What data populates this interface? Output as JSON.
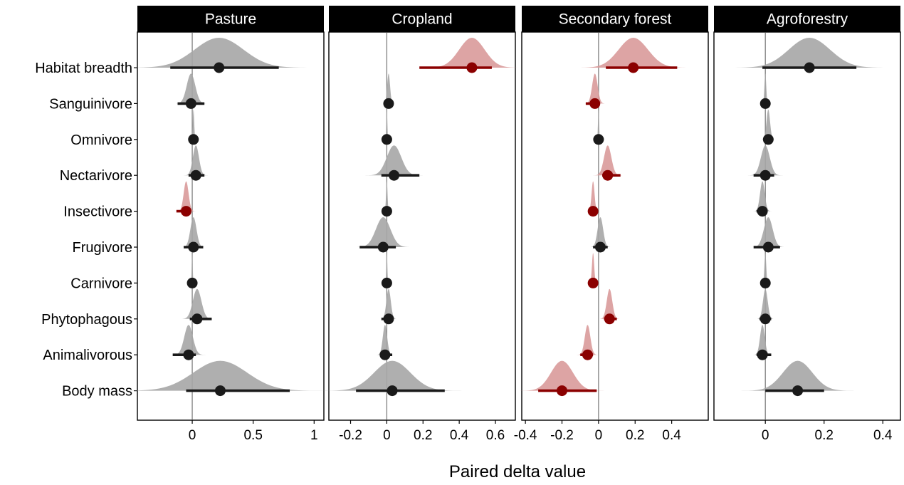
{
  "chart_data": {
    "type": "forest",
    "xlabel": "Paired delta value",
    "categories": [
      "Habitat breadth",
      "Sanguinivore",
      "Omnivore",
      "Nectarivore",
      "Insectivore",
      "Frugivore",
      "Carnivore",
      "Phytophagous",
      "Animalivorous",
      "Body mass"
    ],
    "colors": {
      "not_significant": "#1a1a1a",
      "not_significant_fill": "#a6a6a6",
      "significant": "#8b0000",
      "significant_fill": "#d99a9a",
      "strip_bg": "#000000",
      "zero_line": "#808080"
    },
    "panels": [
      {
        "title": "Pasture",
        "xlim": [
          -0.45,
          1.08
        ],
        "xticks": [
          0,
          0.5,
          1
        ],
        "xtick_labels": [
          "0",
          "0.5",
          "1"
        ],
        "rows": [
          {
            "label": "Habitat breadth",
            "mean": 0.22,
            "lo": -0.18,
            "hi": 0.71,
            "sd": 0.2,
            "significant": false
          },
          {
            "label": "Sanguinivore",
            "mean": -0.01,
            "lo": -0.12,
            "hi": 0.1,
            "sd": 0.035,
            "significant": false
          },
          {
            "label": "Omnivore",
            "mean": 0.01,
            "lo": 0.0,
            "hi": 0.02,
            "sd": 0.006,
            "significant": false
          },
          {
            "label": "Nectarivore",
            "mean": 0.03,
            "lo": -0.03,
            "hi": 0.1,
            "sd": 0.025,
            "significant": false
          },
          {
            "label": "Insectivore",
            "mean": -0.05,
            "lo": -0.13,
            "hi": -0.03,
            "sd": 0.02,
            "significant": true
          },
          {
            "label": "Frugivore",
            "mean": 0.01,
            "lo": -0.07,
            "hi": 0.09,
            "sd": 0.025,
            "significant": false
          },
          {
            "label": "Carnivore",
            "mean": 0.0,
            "lo": -0.01,
            "hi": 0.01,
            "sd": 0.004,
            "significant": false
          },
          {
            "label": "Phytophagous",
            "mean": 0.04,
            "lo": -0.02,
            "hi": 0.16,
            "sd": 0.035,
            "significant": false
          },
          {
            "label": "Animalivorous",
            "mean": -0.03,
            "lo": -0.16,
            "hi": 0.03,
            "sd": 0.035,
            "significant": false
          },
          {
            "label": "Body mass",
            "mean": 0.23,
            "lo": -0.05,
            "hi": 0.8,
            "sd": 0.22,
            "significant": false
          }
        ]
      },
      {
        "title": "Cropland",
        "xlim": [
          -0.32,
          0.71
        ],
        "xticks": [
          -0.2,
          0,
          0.2,
          0.4,
          0.6
        ],
        "xtick_labels": [
          "-0.2",
          "0",
          "0.2",
          "0.4",
          "0.6"
        ],
        "rows": [
          {
            "label": "Habitat breadth",
            "mean": 0.47,
            "lo": 0.18,
            "hi": 0.58,
            "sd": 0.07,
            "significant": true
          },
          {
            "label": "Sanguinivore",
            "mean": 0.01,
            "lo": 0.0,
            "hi": 0.03,
            "sd": 0.008,
            "significant": false
          },
          {
            "label": "Omnivore",
            "mean": 0.0,
            "lo": -0.005,
            "hi": 0.005,
            "sd": 0.003,
            "significant": false
          },
          {
            "label": "Nectarivore",
            "mean": 0.04,
            "lo": -0.03,
            "hi": 0.18,
            "sd": 0.04,
            "significant": false
          },
          {
            "label": "Insectivore",
            "mean": 0.0,
            "lo": -0.01,
            "hi": 0.01,
            "sd": 0.004,
            "significant": false
          },
          {
            "label": "Frugivore",
            "mean": -0.02,
            "lo": -0.15,
            "hi": 0.05,
            "sd": 0.04,
            "significant": false
          },
          {
            "label": "Carnivore",
            "mean": 0.0,
            "lo": -0.005,
            "hi": 0.005,
            "sd": 0.003,
            "significant": false
          },
          {
            "label": "Phytophagous",
            "mean": 0.01,
            "lo": -0.03,
            "hi": 0.03,
            "sd": 0.012,
            "significant": false
          },
          {
            "label": "Animalivorous",
            "mean": -0.01,
            "lo": -0.03,
            "hi": 0.03,
            "sd": 0.012,
            "significant": false
          },
          {
            "label": "Body mass",
            "mean": 0.03,
            "lo": -0.17,
            "hi": 0.32,
            "sd": 0.1,
            "significant": false
          }
        ]
      },
      {
        "title": "Secondary forest",
        "xlim": [
          -0.42,
          0.6
        ],
        "xticks": [
          -0.4,
          -0.2,
          0,
          0.2,
          0.4
        ],
        "xtick_labels": [
          "-0.4",
          "-0.2",
          "0",
          "0.2",
          "0.4"
        ],
        "rows": [
          {
            "label": "Habitat breadth",
            "mean": 0.19,
            "lo": 0.04,
            "hi": 0.43,
            "sd": 0.08,
            "significant": true
          },
          {
            "label": "Sanguinivore",
            "mean": -0.02,
            "lo": -0.07,
            "hi": 0.0,
            "sd": 0.015,
            "significant": true
          },
          {
            "label": "Omnivore",
            "mean": 0.0,
            "lo": -0.005,
            "hi": 0.005,
            "sd": 0.003,
            "significant": false
          },
          {
            "label": "Nectarivore",
            "mean": 0.05,
            "lo": 0.02,
            "hi": 0.12,
            "sd": 0.02,
            "significant": true
          },
          {
            "label": "Insectivore",
            "mean": -0.03,
            "lo": -0.04,
            "hi": -0.01,
            "sd": 0.008,
            "significant": true
          },
          {
            "label": "Frugivore",
            "mean": 0.01,
            "lo": -0.03,
            "hi": 0.05,
            "sd": 0.015,
            "significant": false
          },
          {
            "label": "Carnivore",
            "mean": -0.03,
            "lo": -0.04,
            "hi": -0.02,
            "sd": 0.006,
            "significant": true
          },
          {
            "label": "Phytophagous",
            "mean": 0.06,
            "lo": 0.03,
            "hi": 0.1,
            "sd": 0.015,
            "significant": true
          },
          {
            "label": "Animalivorous",
            "mean": -0.06,
            "lo": -0.1,
            "hi": -0.03,
            "sd": 0.015,
            "significant": true
          },
          {
            "label": "Body mass",
            "mean": -0.2,
            "lo": -0.33,
            "hi": -0.01,
            "sd": 0.06,
            "significant": true
          }
        ]
      },
      {
        "title": "Agroforestry",
        "xlim": [
          -0.175,
          0.46
        ],
        "xticks": [
          0,
          0.2,
          0.4
        ],
        "xtick_labels": [
          "0",
          "0.2",
          "0.4"
        ],
        "rows": [
          {
            "label": "Habitat breadth",
            "mean": 0.15,
            "lo": -0.01,
            "hi": 0.31,
            "sd": 0.07,
            "significant": false
          },
          {
            "label": "Sanguinivore",
            "mean": 0.0,
            "lo": -0.005,
            "hi": 0.005,
            "sd": 0.003,
            "significant": false
          },
          {
            "label": "Omnivore",
            "mean": 0.01,
            "lo": 0.0,
            "hi": 0.02,
            "sd": 0.006,
            "significant": false
          },
          {
            "label": "Nectarivore",
            "mean": 0.0,
            "lo": -0.04,
            "hi": 0.03,
            "sd": 0.015,
            "significant": false
          },
          {
            "label": "Insectivore",
            "mean": -0.01,
            "lo": -0.03,
            "hi": 0.0,
            "sd": 0.008,
            "significant": false
          },
          {
            "label": "Frugivore",
            "mean": 0.01,
            "lo": -0.04,
            "hi": 0.05,
            "sd": 0.015,
            "significant": false
          },
          {
            "label": "Carnivore",
            "mean": 0.0,
            "lo": -0.005,
            "hi": 0.005,
            "sd": 0.003,
            "significant": false
          },
          {
            "label": "Phytophagous",
            "mean": 0.0,
            "lo": -0.02,
            "hi": 0.02,
            "sd": 0.008,
            "significant": false
          },
          {
            "label": "Animalivorous",
            "mean": -0.01,
            "lo": -0.03,
            "hi": 0.02,
            "sd": 0.008,
            "significant": false
          },
          {
            "label": "Body mass",
            "mean": 0.11,
            "lo": 0.0,
            "hi": 0.2,
            "sd": 0.05,
            "significant": false
          }
        ]
      }
    ]
  }
}
